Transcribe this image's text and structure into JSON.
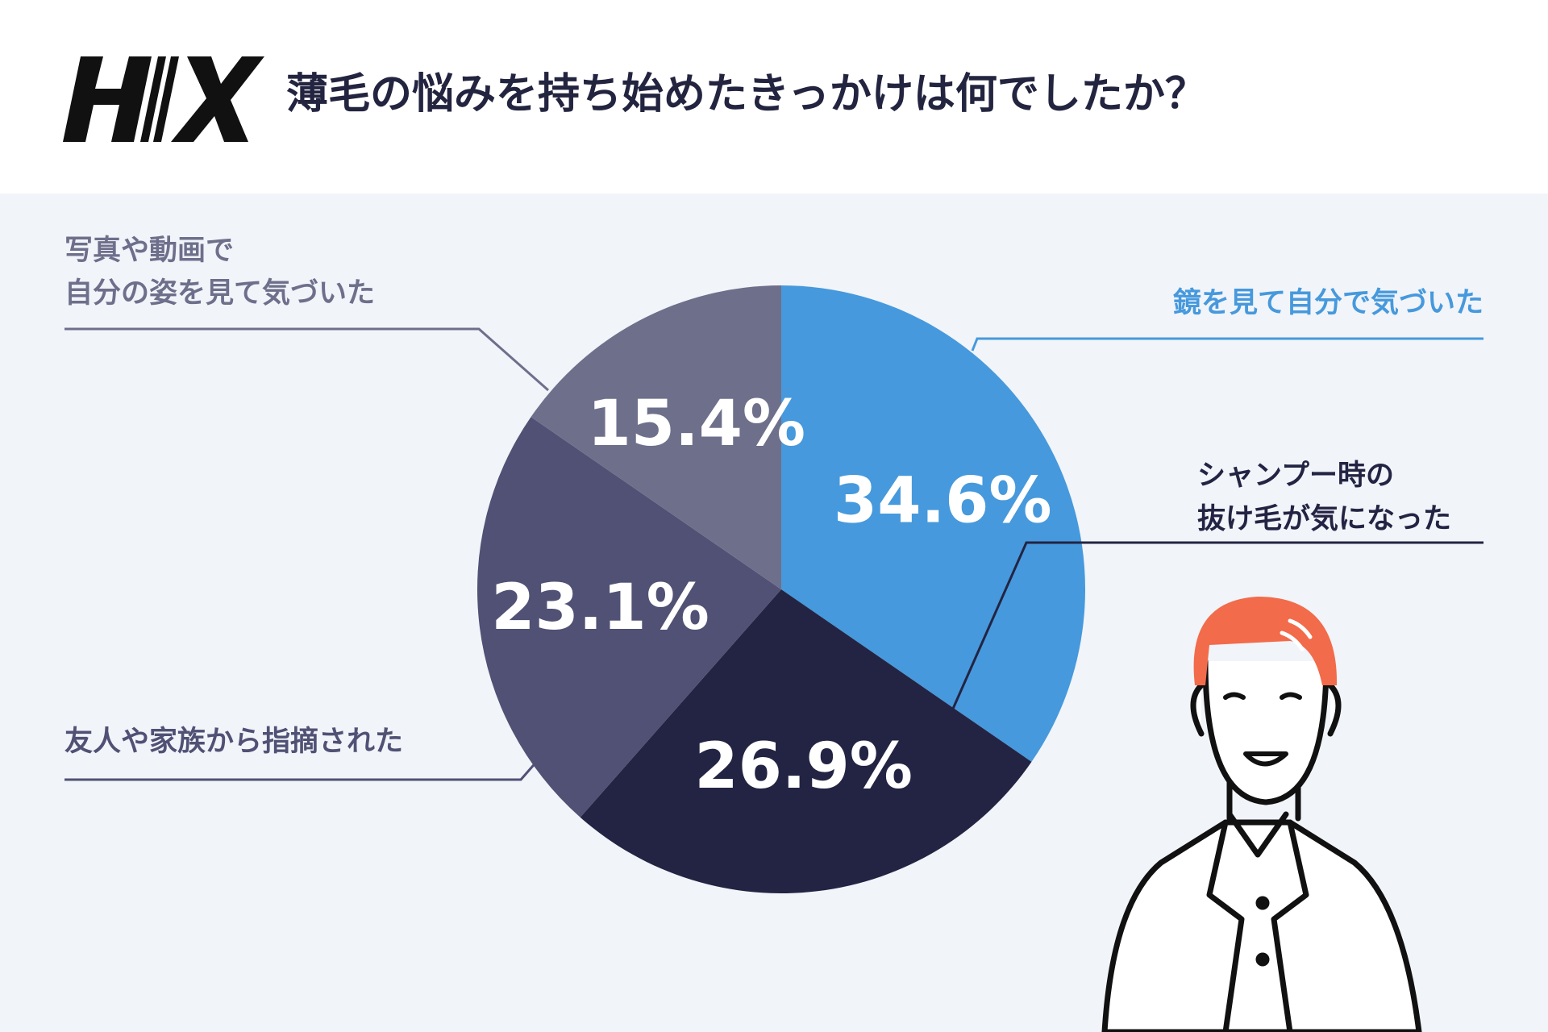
{
  "chart_data": {
    "type": "pie",
    "title": "薄毛の悩みを持ち始めたきっかけは何でしたか？",
    "categories": [
      [
        "鏡を見て自分で気づいた"
      ],
      [
        "シャンプー時の",
        "抜け毛が気になった"
      ],
      [
        "友人や家族から指摘された"
      ],
      [
        "写真や動画で",
        "自分の姿を見て気づいた"
      ]
    ],
    "values": [
      34.6,
      26.9,
      23.1,
      15.4
    ],
    "value_labels": [
      "34.6%",
      "26.9%",
      "23.1%",
      "15.4%"
    ],
    "colors": [
      "#4699dc",
      "#232443",
      "#505174",
      "#6e6f8b"
    ]
  }
}
